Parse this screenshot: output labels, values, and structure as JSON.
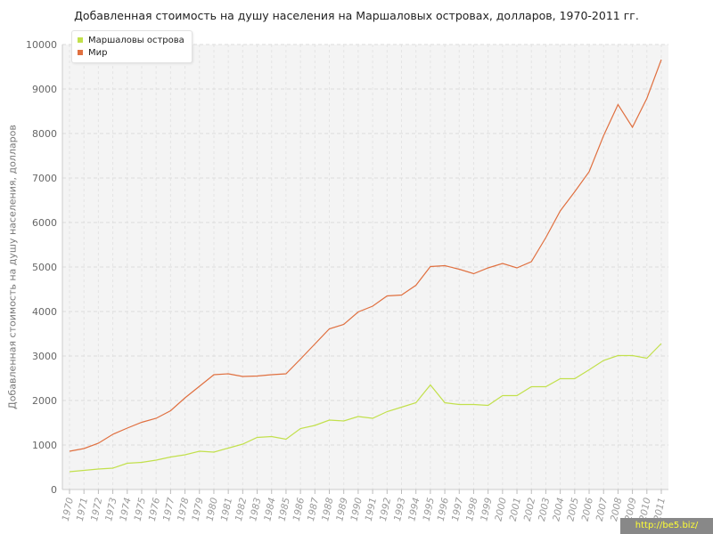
{
  "chart_data": {
    "type": "line",
    "title": "Добавленная стоимость на душу населения на Маршаловых островах, долларов, 1970-2011 гг.",
    "ylabel": "Добавленная стоимость на душу населения, долларов",
    "xlabel": "",
    "ylim": [
      0,
      10000
    ],
    "yticks": [
      0,
      1000,
      2000,
      3000,
      4000,
      5000,
      6000,
      7000,
      8000,
      9000,
      10000
    ],
    "grid": true,
    "legend_position": "top-left",
    "x": [
      1970,
      1971,
      1972,
      1973,
      1974,
      1975,
      1976,
      1977,
      1978,
      1979,
      1980,
      1981,
      1982,
      1983,
      1984,
      1985,
      1986,
      1987,
      1988,
      1989,
      1990,
      1991,
      1992,
      1993,
      1994,
      1995,
      1996,
      1997,
      1998,
      1999,
      2000,
      2001,
      2002,
      2003,
      2004,
      2005,
      2006,
      2007,
      2008,
      2009,
      2010,
      2011
    ],
    "series": [
      {
        "name": "Маршаловы острова",
        "color": "#c2e04c",
        "values": [
          400,
          430,
          460,
          480,
          590,
          610,
          660,
          730,
          780,
          860,
          840,
          930,
          1020,
          1170,
          1190,
          1130,
          1370,
          1440,
          1560,
          1540,
          1640,
          1600,
          1750,
          1850,
          1950,
          2350,
          1950,
          1910,
          1910,
          1890,
          2110,
          2110,
          2310,
          2310,
          2490,
          2490,
          2690,
          2900,
          3010,
          3010,
          2950,
          3280
        ]
      },
      {
        "name": "Мир",
        "color": "#e07040",
        "values": [
          860,
          920,
          1040,
          1240,
          1380,
          1510,
          1600,
          1770,
          2060,
          2320,
          2580,
          2600,
          2540,
          2550,
          2580,
          2600,
          2930,
          3270,
          3610,
          3710,
          3990,
          4120,
          4350,
          4370,
          4590,
          5010,
          5030,
          4950,
          4850,
          4980,
          5080,
          4980,
          5120,
          5660,
          6260,
          6690,
          7140,
          7950,
          8650,
          8140,
          8790,
          9660
        ]
      }
    ]
  },
  "watermark": "http://be5.biz/"
}
